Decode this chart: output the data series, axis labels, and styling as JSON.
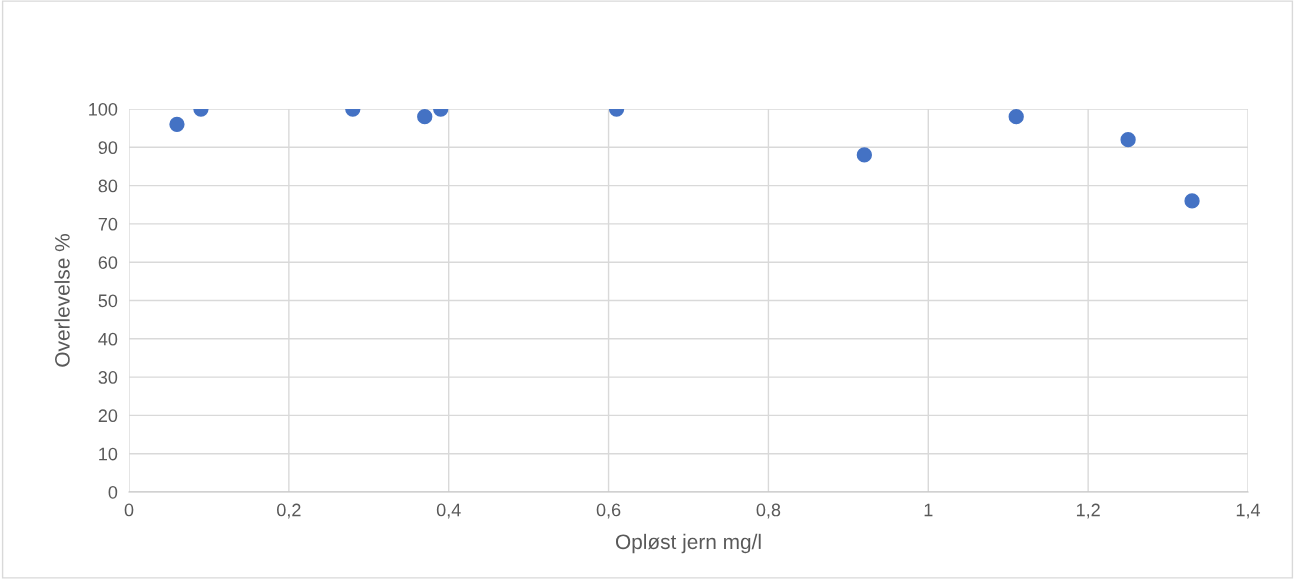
{
  "chart_data": {
    "type": "scatter",
    "xlabel": "Opløst jern mg/l",
    "ylabel": "Overlevelse %",
    "series": [
      {
        "color": "#4472c4",
        "x": [
          0.06,
          0.09,
          0.28,
          0.37,
          0.39,
          0.61,
          0.92,
          1.11,
          1.25,
          1.33
        ],
        "values": [
          96,
          100,
          100,
          98,
          100,
          100,
          88,
          98,
          92,
          76
        ]
      }
    ],
    "xlim": [
      0,
      1.4
    ],
    "xticks": [
      0,
      {
        "value": 0.2,
        "label": "0,2"
      },
      {
        "value": 0.4,
        "label": "0,4"
      },
      {
        "value": 0.6,
        "label": "0,6"
      },
      {
        "value": 0.8,
        "label": "0,8"
      },
      1,
      {
        "value": 1.2,
        "label": "1,2"
      },
      {
        "value": 1.4,
        "label": "1,4"
      }
    ],
    "ylim": [
      0,
      100
    ],
    "yticks": [
      0,
      10,
      20,
      30,
      40,
      50,
      60,
      70,
      80,
      90,
      100
    ],
    "grid": true,
    "marker": "circle"
  }
}
